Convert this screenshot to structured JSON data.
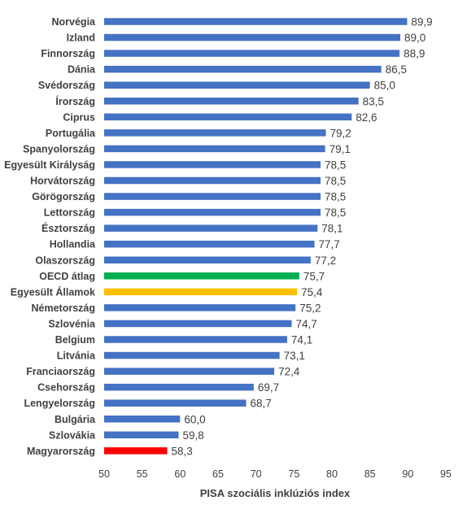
{
  "chart_data": {
    "type": "bar",
    "orientation": "horizontal",
    "xlabel": "PISA szociális inklúziós index",
    "xlim": [
      50,
      95
    ],
    "x_ticks": [
      "50",
      "55",
      "60",
      "65",
      "70",
      "75",
      "80",
      "85",
      "90",
      "95"
    ],
    "grid": false,
    "colors": {
      "default": "#4472C4",
      "oecd": "#00B050",
      "usa": "#FFC000",
      "hungary": "#FF0000"
    },
    "categories": [
      "Norvégia",
      "Izland",
      "Finnország",
      "Dánia",
      "Svédország",
      "Írország",
      "Ciprus",
      "Portugália",
      "Spanyolország",
      "Egyesült Királyság",
      "Horvátország",
      "Görögország",
      "Lettország",
      "Észtország",
      "Hollandia",
      "Olaszország",
      "OECD átlag",
      "Egyesült Államok",
      "Németország",
      "Szlovénia",
      "Belgium",
      "Litvánia",
      "Franciaország",
      "Csehország",
      "Lengyelország",
      "Bulgária",
      "Szlovákia",
      "Magyarország"
    ],
    "values": [
      89.9,
      89.0,
      88.9,
      86.5,
      85.0,
      83.5,
      82.6,
      79.2,
      79.1,
      78.5,
      78.5,
      78.5,
      78.5,
      78.1,
      77.7,
      77.2,
      75.7,
      75.4,
      75.2,
      74.7,
      74.1,
      73.1,
      72.4,
      69.7,
      68.7,
      60.0,
      59.8,
      58.3
    ],
    "value_labels": [
      "89,9",
      "89,0",
      "88,9",
      "86,5",
      "85,0",
      "83,5",
      "82,6",
      "79,2",
      "79,1",
      "78,5",
      "78,5",
      "78,5",
      "78,5",
      "78,1",
      "77,7",
      "77,2",
      "75,7",
      "75,4",
      "75,2",
      "74,7",
      "74,1",
      "73,1",
      "72,4",
      "69,7",
      "68,7",
      "60,0",
      "59,8",
      "58,3"
    ],
    "highlights": {
      "OECD átlag": {
        "bar": "#00B050",
        "label": "#00B050"
      },
      "Egyesült Államok": {
        "bar": "#FFC000",
        "label": "#FFC000"
      },
      "Magyarország": {
        "bar": "#FF0000",
        "label": "#C00000"
      }
    }
  }
}
